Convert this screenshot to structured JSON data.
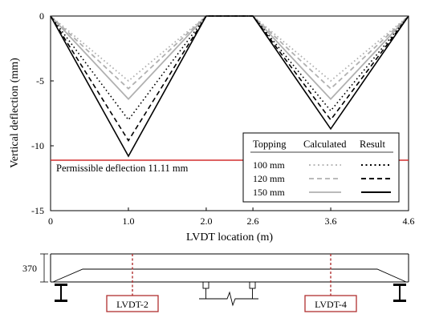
{
  "chart_data": {
    "type": "line",
    "xlabel": "LVDT location (m)",
    "ylabel": "Vertical deflection (mm)",
    "xlim": [
      0,
      4.6
    ],
    "ylim": [
      -15,
      0
    ],
    "x_ticks": [
      "0",
      "1.0",
      "2.0",
      "2.6",
      "3.6",
      "4.6"
    ],
    "y_ticks": [
      "0",
      "-5",
      "-10",
      "-15"
    ],
    "grid": false,
    "legend": {
      "placement": "bottom-right",
      "header_group": "Topping",
      "header_calculated": "Calculated",
      "header_result": "Result",
      "rows": [
        "100 mm",
        "120 mm",
        "150 mm"
      ]
    },
    "permissible": {
      "label": "Permissible deflection 11.11 mm",
      "value": -11.11,
      "color": "#d32f2f"
    },
    "series": [
      {
        "name": "100 mm",
        "kind": "Calculated",
        "color": "#b0b0b0",
        "dash": "dot",
        "x": [
          0,
          1.0,
          2.0,
          2.6,
          3.6,
          4.6
        ],
        "y": [
          0,
          -5.0,
          0,
          0,
          -5.0,
          0
        ]
      },
      {
        "name": "120 mm",
        "kind": "Calculated",
        "color": "#b0b0b0",
        "dash": "dash",
        "x": [
          0,
          1.0,
          2.0,
          2.6,
          3.6,
          4.6
        ],
        "y": [
          0,
          -5.6,
          0,
          0,
          -5.6,
          0
        ]
      },
      {
        "name": "150 mm",
        "kind": "Calculated",
        "color": "#b0b0b0",
        "dash": "solid",
        "x": [
          0,
          1.0,
          2.0,
          2.6,
          3.6,
          4.6
        ],
        "y": [
          0,
          -6.4,
          0,
          0,
          -6.4,
          0
        ]
      },
      {
        "name": "100 mm",
        "kind": "Result",
        "color": "#000000",
        "dash": "dot",
        "x": [
          0,
          1.0,
          2.0,
          2.6,
          3.6,
          4.6
        ],
        "y": [
          0,
          -8.0,
          0,
          0,
          -7.3,
          0
        ]
      },
      {
        "name": "120 mm",
        "kind": "Result",
        "color": "#000000",
        "dash": "dash",
        "x": [
          0,
          1.0,
          2.0,
          2.6,
          3.6,
          4.6
        ],
        "y": [
          0,
          -9.6,
          0,
          0,
          -8.0,
          0
        ]
      },
      {
        "name": "150 mm",
        "kind": "Result",
        "color": "#000000",
        "dash": "solid",
        "x": [
          0,
          1.0,
          2.0,
          2.6,
          3.6,
          4.6
        ],
        "y": [
          0,
          -10.8,
          0,
          0,
          -8.7,
          0
        ]
      }
    ]
  },
  "beam_diagram": {
    "depth_label": "370",
    "lvdt_labels": [
      "LVDT-2",
      "LVDT-4"
    ],
    "lvdt_positions_m": [
      1.0,
      3.6
    ],
    "accent_color": "#b03030"
  }
}
